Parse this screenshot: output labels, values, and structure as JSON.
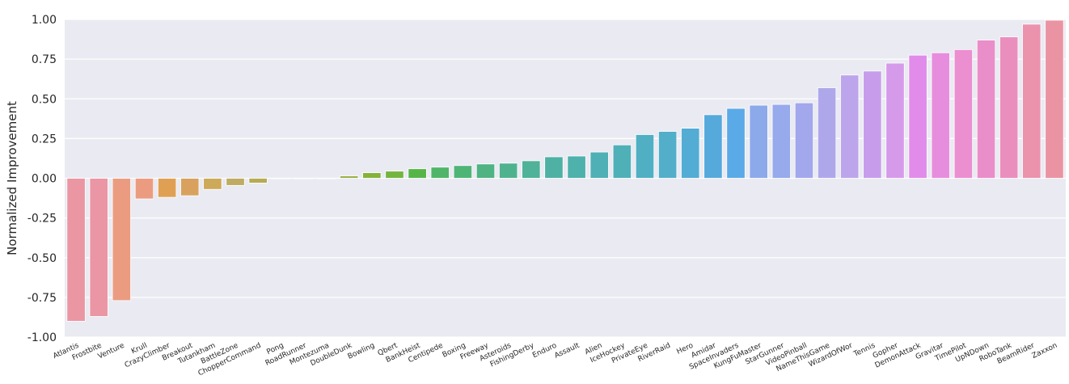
{
  "chart_data": {
    "type": "bar",
    "title": "",
    "xlabel": "",
    "ylabel": "Normalized Improvement",
    "ylim": [
      -1.0,
      1.0
    ],
    "yticks": [
      "1.00",
      "0.75",
      "0.50",
      "0.25",
      "0.00",
      "-0.25",
      "-0.50",
      "-0.75",
      "-1.00"
    ],
    "grid": true,
    "legend": "none",
    "background_color": "#eaeaf2",
    "categories": [
      "Atlantis",
      "Frostbite",
      "Venture",
      "Krull",
      "CrazyClimber",
      "Breakout",
      "Tutankham",
      "BattleZone",
      "ChopperCommand",
      "Pong",
      "RoadRunner",
      "Montezuma",
      "DoubleDunk",
      "Bowling",
      "Qbert",
      "BankHeist",
      "Centipede",
      "Boxing",
      "Freeway",
      "Asteroids",
      "FishingDerby",
      "Enduro",
      "Assault",
      "Alien",
      "IceHockey",
      "PrivateEye",
      "RiverRaid",
      "Hero",
      "Amidar",
      "SpaceInvaders",
      "KungFuMaster",
      "StarGunner",
      "VideoPinball",
      "NameThisGame",
      "WizardOfWor",
      "Tennis",
      "Gopher",
      "DemonAttack",
      "Gravitar",
      "TimePilot",
      "UpNDown",
      "RoboTank",
      "BeamRider",
      "Zaxxon"
    ],
    "values": [
      -0.9,
      -0.87,
      -0.77,
      -0.13,
      -0.12,
      -0.11,
      -0.07,
      -0.045,
      -0.03,
      -0.002,
      -0.001,
      0.0,
      0.015,
      0.035,
      0.045,
      0.06,
      0.07,
      0.08,
      0.09,
      0.095,
      0.11,
      0.135,
      0.14,
      0.165,
      0.21,
      0.275,
      0.295,
      0.315,
      0.4,
      0.44,
      0.46,
      0.465,
      0.475,
      0.57,
      0.65,
      0.675,
      0.725,
      0.775,
      0.79,
      0.81,
      0.87,
      0.89,
      0.97,
      0.995
    ],
    "colors": [
      "#ea96a3",
      "#ea96a4",
      "#eb9c80",
      "#eb9c80",
      "#e0a054",
      "#d8a25e",
      "#cda95a",
      "#bfab62",
      "#b7ab52",
      "#aeac4b",
      "#a6ad47",
      "#9aad45",
      "#9ab04a",
      "#84b23a",
      "#74b53f",
      "#57b548",
      "#50b56a",
      "#4fb577",
      "#4fb384",
      "#4fb28e",
      "#4fb299",
      "#4eb1a3",
      "#4fb1ab",
      "#4fb0b5",
      "#4fb0b8",
      "#50afc2",
      "#52aec9",
      "#52acd4",
      "#55a9db",
      "#5aaae7",
      "#8ca9ea",
      "#96aaec",
      "#a3a8ec",
      "#aea8eb",
      "#bda5eb",
      "#c79deb",
      "#d69aeb",
      "#e18ceb",
      "#e78ddd",
      "#eb8fd0",
      "#e98ec9",
      "#ea8fbd",
      "#eb92ad",
      "#ea94a3"
    ]
  }
}
